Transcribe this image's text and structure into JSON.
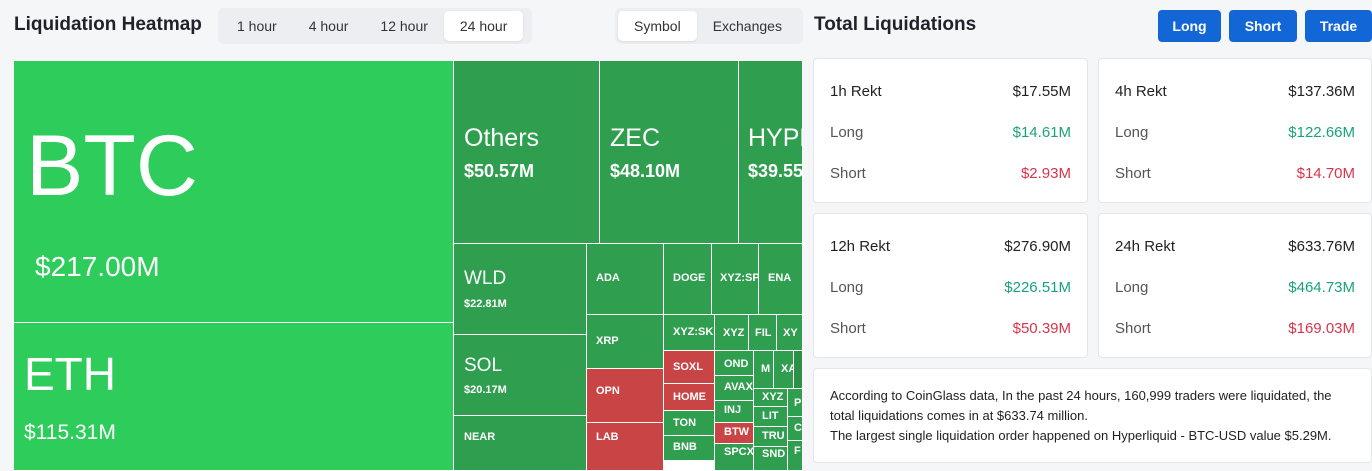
{
  "heatmap": {
    "title": "Liquidation Heatmap",
    "time_options": [
      "1 hour",
      "4 hour",
      "12 hour",
      "24 hour"
    ],
    "time_selected": "24 hour",
    "group_options": [
      "Symbol",
      "Exchanges"
    ],
    "group_selected": "Symbol",
    "cells": {
      "btc": {
        "symbol": "BTC",
        "value": "$217.00M"
      },
      "eth": {
        "symbol": "ETH",
        "value": "$115.31M"
      },
      "others": {
        "symbol": "Others",
        "value": "$50.57M"
      },
      "zec": {
        "symbol": "ZEC",
        "value": "$48.10M"
      },
      "hype": {
        "symbol": "HYPE",
        "value": "$39.55"
      },
      "wld": {
        "symbol": "WLD",
        "value": "$22.81M"
      },
      "sol": {
        "symbol": "SOL",
        "value": "$20.17M"
      },
      "near": {
        "symbol": "NEAR"
      },
      "ada": {
        "symbol": "ADA"
      },
      "doge": {
        "symbol": "DOGE"
      },
      "xyz_sp": {
        "symbol": "XYZ:SP"
      },
      "ena": {
        "symbol": "ENA"
      },
      "xrp": {
        "symbol": "XRP"
      },
      "xyz_sk": {
        "symbol": "XYZ:SK"
      },
      "xyz1": {
        "symbol": "XYZ"
      },
      "fil": {
        "symbol": "FIL"
      },
      "xy": {
        "symbol": "XY"
      },
      "opn": {
        "symbol": "OPN"
      },
      "lab": {
        "symbol": "LAB"
      },
      "soxl": {
        "symbol": "SOXL"
      },
      "home": {
        "symbol": "HOME"
      },
      "ton": {
        "symbol": "TON"
      },
      "bnb": {
        "symbol": "BNB"
      },
      "ondo": {
        "symbol": "OND"
      },
      "avax": {
        "symbol": "AVAX"
      },
      "inj": {
        "symbol": "INJ"
      },
      "btw": {
        "symbol": "BTW"
      },
      "spcx": {
        "symbol": "SPCX"
      },
      "m": {
        "symbol": "M"
      },
      "xa": {
        "symbol": "XA"
      },
      "xyz2": {
        "symbol": "XYZ"
      },
      "lit": {
        "symbol": "LIT"
      },
      "tru": {
        "symbol": "TRU"
      },
      "snd": {
        "symbol": "SND"
      },
      "p": {
        "symbol": "P"
      },
      "c": {
        "symbol": "C"
      },
      "f": {
        "symbol": "F"
      }
    }
  },
  "totals": {
    "title": "Total Liquidations",
    "buttons": {
      "long": "Long",
      "short": "Short",
      "trade": "Trade"
    },
    "labels": {
      "long": "Long",
      "short": "Short"
    },
    "cards": [
      {
        "period": "1h Rekt",
        "total": "$17.55M",
        "long": "$14.61M",
        "short": "$2.93M"
      },
      {
        "period": "4h Rekt",
        "total": "$137.36M",
        "long": "$122.66M",
        "short": "$14.70M"
      },
      {
        "period": "12h Rekt",
        "total": "$276.90M",
        "long": "$226.51M",
        "short": "$50.39M"
      },
      {
        "period": "24h Rekt",
        "total": "$633.76M",
        "long": "$464.73M",
        "short": "$169.03M"
      }
    ],
    "summary_line1": "According to CoinGlass data, In the past 24 hours, 160,999 traders were liquidated, the total liquidations comes in at $633.74 million.",
    "summary_line2": "The largest single liquidation order happened on Hyperliquid - BTC-USD value $5.29M."
  },
  "colors": {
    "accent_blue": "#1366d6",
    "long_green": "#1aa37a",
    "short_red": "#d8344b",
    "heat_bright": "#2ecc5a",
    "heat_mid": "#2f9e4f",
    "heat_red": "#c94444"
  }
}
